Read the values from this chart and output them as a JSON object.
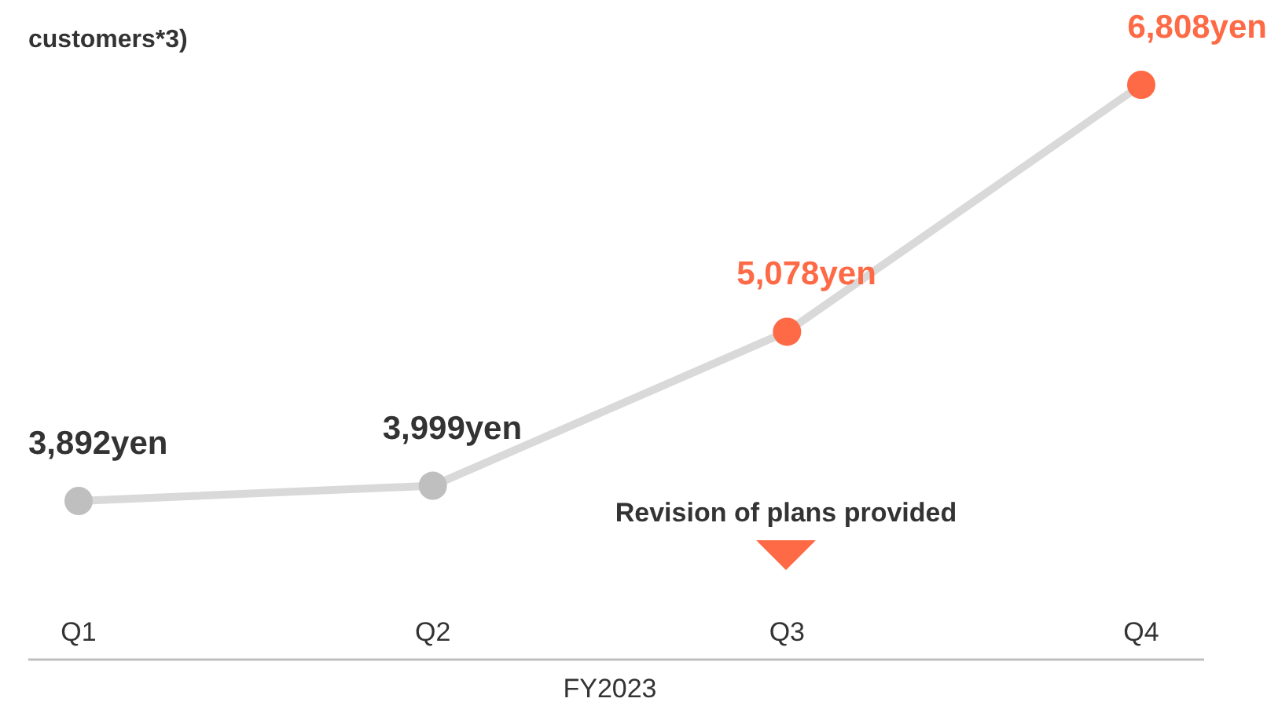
{
  "chart_data": {
    "type": "line",
    "title": "customers*3)",
    "xlabel": "FY2023",
    "categories": [
      "Q1",
      "Q2",
      "Q3",
      "Q4"
    ],
    "series": [
      {
        "color": "#d9d9d9",
        "colors": [
          "#bfbfbf",
          "#bfbfbf",
          "#fd6a45",
          "#fd6a45"
        ],
        "values": [
          3892,
          3999,
          5078,
          6808
        ],
        "value_labels": [
          "3,892yen",
          "3,999yen",
          "5,078yen",
          "6,808yen"
        ]
      }
    ],
    "marker": "circle",
    "annotations": [
      "Revision of plans provided"
    ]
  }
}
